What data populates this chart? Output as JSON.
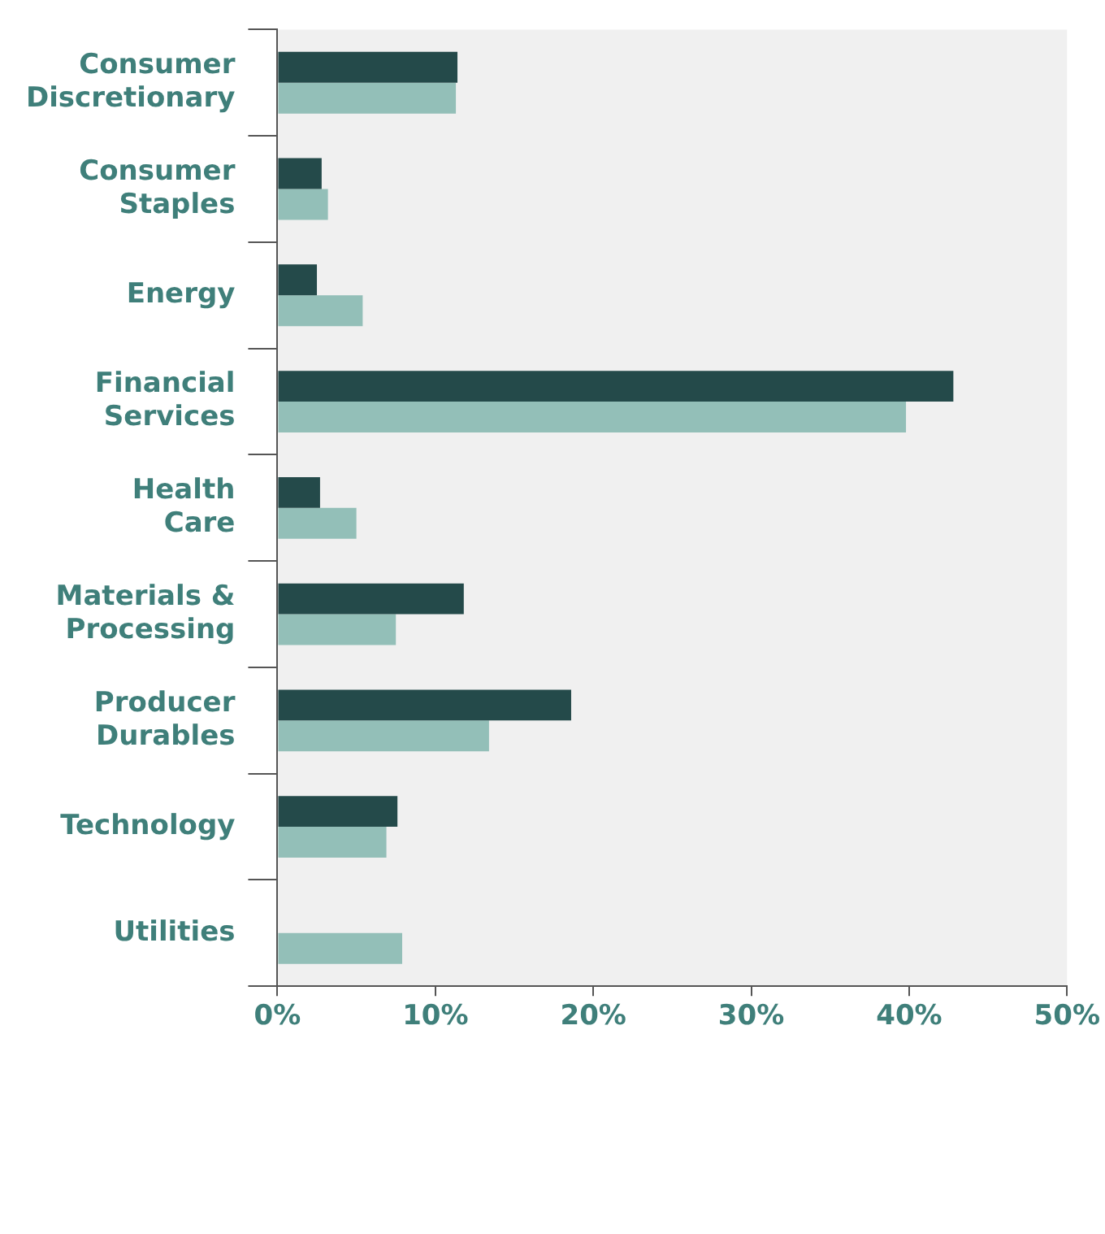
{
  "chart_data": {
    "type": "bar",
    "orientation": "horizontal",
    "categories": [
      "Consumer Discretionary",
      "Consumer Staples",
      "Energy",
      "Financial Services",
      "Health Care",
      "Materials & Processing",
      "Producer Durables",
      "Technology",
      "Utilities"
    ],
    "series": [
      {
        "color": "#244a4a",
        "values": [
          11.4,
          2.8,
          2.5,
          42.8,
          2.7,
          11.8,
          18.6,
          7.6,
          null
        ]
      },
      {
        "color": "#93bfb8",
        "values": [
          11.3,
          3.2,
          5.4,
          39.8,
          5.0,
          7.5,
          13.4,
          6.9,
          7.9
        ]
      }
    ],
    "xlim": [
      0,
      50
    ],
    "xticks": [
      {
        "value": 0,
        "label": "0%"
      },
      {
        "value": 10,
        "label": "10%"
      },
      {
        "value": 20,
        "label": "20%"
      },
      {
        "value": 30,
        "label": "30%"
      },
      {
        "value": 40,
        "label": "40%"
      },
      {
        "value": 50,
        "label": "50%"
      }
    ],
    "grid": false,
    "legend": false
  }
}
